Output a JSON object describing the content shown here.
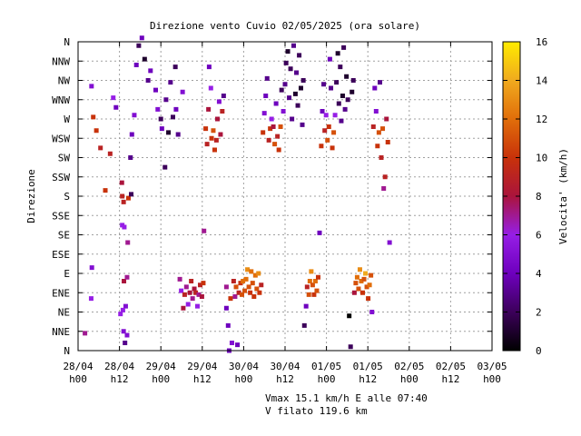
{
  "chart_data": {
    "type": "scatter",
    "title": "Direzione vento Cuvio 02/05/2025 (ora solare)",
    "ylabel": "Direzione",
    "colorbar_label": "Velocita' (km/h)",
    "colorbar_ticks": [
      "0",
      "2",
      "4",
      "6",
      "8",
      "10",
      "12",
      "14",
      "16"
    ],
    "colorbar_range": [
      0,
      16
    ],
    "x_ticks": [
      {
        "date": "28/04",
        "time": "h00"
      },
      {
        "date": "28/04",
        "time": "h12"
      },
      {
        "date": "29/04",
        "time": "h00"
      },
      {
        "date": "29/04",
        "time": "h12"
      },
      {
        "date": "30/04",
        "time": "h00"
      },
      {
        "date": "30/04",
        "time": "h12"
      },
      {
        "date": "01/05",
        "time": "h00"
      },
      {
        "date": "01/05",
        "time": "h12"
      },
      {
        "date": "02/05",
        "time": "h00"
      },
      {
        "date": "02/05",
        "time": "h12"
      },
      {
        "date": "03/05",
        "time": "h00"
      }
    ],
    "y_ticks": [
      "N",
      "NNE",
      "NE",
      "ENE",
      "E",
      "ESE",
      "SE",
      "SSE",
      "S",
      "SSW",
      "SW",
      "WSW",
      "W",
      "WNW",
      "NW",
      "NNW",
      "N"
    ],
    "grid": true,
    "footer": [
      "Vmax 15.1 km/h E alle 07:40",
      "V filato 119.6 km"
    ],
    "points": [
      [
        2.0,
        0.9,
        7
      ],
      [
        3.8,
        2.7,
        6
      ],
      [
        4.0,
        4.3,
        5
      ],
      [
        3.9,
        13.7,
        5
      ],
      [
        4.4,
        12.1,
        10
      ],
      [
        5.3,
        11.4,
        10
      ],
      [
        6.5,
        10.5,
        9
      ],
      [
        7.9,
        8.3,
        10
      ],
      [
        9.3,
        10.2,
        9
      ],
      [
        10.2,
        13.1,
        6
      ],
      [
        11.0,
        12.6,
        4
      ],
      [
        12.7,
        8.7,
        8
      ],
      [
        12.8,
        8.0,
        9
      ],
      [
        13.2,
        7.7,
        9
      ],
      [
        12.8,
        6.5,
        6
      ],
      [
        13.4,
        6.4,
        6
      ],
      [
        13.3,
        3.6,
        8
      ],
      [
        13.8,
        2.3,
        5
      ],
      [
        13.0,
        2.1,
        6
      ],
      [
        12.3,
        1.9,
        6
      ],
      [
        13.2,
        1.0,
        5
      ],
      [
        14.2,
        0.8,
        5
      ],
      [
        13.6,
        0.4,
        3
      ],
      [
        14.2,
        3.8,
        7
      ],
      [
        14.4,
        5.6,
        7
      ],
      [
        14.6,
        7.9,
        10
      ],
      [
        15.4,
        8.1,
        2
      ],
      [
        15.2,
        10.0,
        3
      ],
      [
        15.6,
        11.2,
        4
      ],
      [
        16.3,
        12.2,
        5
      ],
      [
        16.9,
        14.8,
        4
      ],
      [
        17.6,
        15.8,
        2
      ],
      [
        18.5,
        16.2,
        4
      ],
      [
        19.3,
        15.1,
        1
      ],
      [
        20.3,
        14.0,
        3
      ],
      [
        21.0,
        14.5,
        4
      ],
      [
        22.5,
        13.5,
        4
      ],
      [
        23.1,
        12.5,
        5
      ],
      [
        24.0,
        12.0,
        2
      ],
      [
        24.3,
        11.5,
        4
      ],
      [
        25.2,
        9.5,
        2
      ],
      [
        25.5,
        13.0,
        3
      ],
      [
        26.2,
        11.3,
        1
      ],
      [
        26.8,
        13.9,
        3
      ],
      [
        27.5,
        12.1,
        2
      ],
      [
        28.2,
        14.7,
        2
      ],
      [
        28.4,
        12.5,
        4
      ],
      [
        29.0,
        11.2,
        3
      ],
      [
        30.3,
        13.4,
        5
      ],
      [
        29.5,
        3.7,
        7
      ],
      [
        29.9,
        3.1,
        6
      ],
      [
        30.5,
        2.2,
        8
      ],
      [
        30.9,
        2.9,
        9
      ],
      [
        31.4,
        3.3,
        7
      ],
      [
        31.9,
        2.4,
        6
      ],
      [
        32.4,
        3.0,
        8
      ],
      [
        32.8,
        3.6,
        9
      ],
      [
        33.2,
        2.7,
        7
      ],
      [
        33.7,
        3.2,
        8
      ],
      [
        34.1,
        3.0,
        9
      ],
      [
        34.6,
        2.3,
        6
      ],
      [
        35.0,
        2.9,
        7
      ],
      [
        35.4,
        3.4,
        9
      ],
      [
        35.9,
        2.8,
        8
      ],
      [
        36.3,
        3.5,
        10
      ],
      [
        36.5,
        6.2,
        7
      ],
      [
        37.0,
        11.5,
        10
      ],
      [
        37.4,
        10.7,
        9
      ],
      [
        37.8,
        12.5,
        8
      ],
      [
        38.0,
        14.7,
        4
      ],
      [
        38.5,
        13.6,
        6
      ],
      [
        38.7,
        11.0,
        10
      ],
      [
        39.2,
        11.4,
        11
      ],
      [
        39.6,
        10.4,
        10
      ],
      [
        40.1,
        10.9,
        9
      ],
      [
        40.4,
        12.0,
        8
      ],
      [
        40.9,
        12.9,
        5
      ],
      [
        41.3,
        11.2,
        8
      ],
      [
        41.8,
        12.4,
        9
      ],
      [
        42.2,
        13.2,
        3
      ],
      [
        43.0,
        3.3,
        7
      ],
      [
        43.0,
        2.2,
        4
      ],
      [
        43.5,
        1.3,
        4
      ],
      [
        43.8,
        0.0,
        4
      ],
      [
        44.2,
        2.7,
        10
      ],
      [
        44.6,
        0.4,
        5
      ],
      [
        45.1,
        3.6,
        9
      ],
      [
        45.5,
        2.8,
        7
      ],
      [
        45.8,
        3.3,
        11
      ],
      [
        46.2,
        0.3,
        4
      ],
      [
        46.6,
        3.0,
        9
      ],
      [
        47.1,
        3.5,
        10
      ],
      [
        47.5,
        2.9,
        11
      ],
      [
        47.8,
        3.6,
        12
      ],
      [
        48.3,
        3.1,
        11
      ],
      [
        48.7,
        3.7,
        12
      ],
      [
        49.1,
        4.2,
        13
      ],
      [
        49.5,
        3.3,
        11
      ],
      [
        49.9,
        3.0,
        10
      ],
      [
        50.2,
        4.1,
        12
      ],
      [
        50.6,
        3.5,
        11
      ],
      [
        51.0,
        2.8,
        10
      ],
      [
        51.4,
        3.9,
        12
      ],
      [
        51.8,
        3.2,
        11
      ],
      [
        52.3,
        4.0,
        13
      ],
      [
        52.6,
        3.0,
        10
      ],
      [
        53.1,
        3.4,
        9
      ],
      [
        53.6,
        11.3,
        10
      ],
      [
        54.0,
        12.3,
        5
      ],
      [
        54.4,
        13.2,
        4
      ],
      [
        54.8,
        14.1,
        3
      ],
      [
        55.3,
        10.9,
        9
      ],
      [
        55.7,
        11.5,
        10
      ],
      [
        56.1,
        12.0,
        6
      ],
      [
        56.6,
        11.6,
        8
      ],
      [
        57.0,
        10.7,
        11
      ],
      [
        57.4,
        12.8,
        4
      ],
      [
        57.8,
        11.1,
        9
      ],
      [
        58.2,
        10.4,
        10
      ],
      [
        58.7,
        11.6,
        11
      ],
      [
        59.0,
        13.5,
        2
      ],
      [
        59.5,
        12.4,
        5
      ],
      [
        60.0,
        13.8,
        3
      ],
      [
        60.3,
        14.9,
        2
      ],
      [
        60.8,
        15.5,
        1
      ],
      [
        61.2,
        13.1,
        3
      ],
      [
        61.6,
        14.6,
        2
      ],
      [
        62.0,
        12.0,
        3
      ],
      [
        62.5,
        15.8,
        3
      ],
      [
        63.0,
        13.3,
        1
      ],
      [
        63.3,
        14.4,
        3
      ],
      [
        63.7,
        12.7,
        2
      ],
      [
        64.1,
        15.3,
        2
      ],
      [
        64.6,
        13.6,
        1
      ],
      [
        65.0,
        11.7,
        3
      ],
      [
        65.3,
        14.0,
        2
      ],
      [
        65.6,
        1.3,
        2
      ],
      [
        66.1,
        2.3,
        4
      ],
      [
        66.4,
        3.3,
        9
      ],
      [
        66.9,
        2.9,
        11
      ],
      [
        67.2,
        3.6,
        12
      ],
      [
        67.6,
        4.1,
        13
      ],
      [
        68.0,
        3.4,
        11
      ],
      [
        68.4,
        2.9,
        10
      ],
      [
        68.8,
        3.6,
        12
      ],
      [
        69.2,
        3.1,
        11
      ],
      [
        69.6,
        3.8,
        10
      ],
      [
        70.0,
        6.1,
        4
      ],
      [
        70.5,
        10.6,
        10
      ],
      [
        70.8,
        12.4,
        4
      ],
      [
        71.2,
        13.8,
        3
      ],
      [
        71.5,
        11.4,
        9
      ],
      [
        71.9,
        12.2,
        6
      ],
      [
        72.3,
        10.9,
        11
      ],
      [
        72.7,
        11.6,
        10
      ],
      [
        73.0,
        15.1,
        4
      ],
      [
        73.3,
        13.6,
        3
      ],
      [
        73.7,
        10.5,
        10
      ],
      [
        74.1,
        11.3,
        11
      ],
      [
        74.5,
        12.2,
        6
      ],
      [
        74.9,
        13.9,
        2
      ],
      [
        75.3,
        15.4,
        1
      ],
      [
        75.6,
        12.8,
        2
      ],
      [
        76.0,
        14.7,
        2
      ],
      [
        76.3,
        11.9,
        3
      ],
      [
        76.7,
        13.2,
        1
      ],
      [
        77.0,
        15.7,
        2
      ],
      [
        77.4,
        12.5,
        3
      ],
      [
        77.8,
        14.2,
        1
      ],
      [
        78.2,
        13.0,
        2
      ],
      [
        78.6,
        1.8,
        0
      ],
      [
        79.0,
        0.2,
        2
      ],
      [
        79.4,
        13.4,
        1
      ],
      [
        79.8,
        14.0,
        2
      ],
      [
        80.1,
        3.0,
        8
      ],
      [
        80.5,
        3.5,
        11
      ],
      [
        80.9,
        3.8,
        12
      ],
      [
        81.3,
        3.2,
        11
      ],
      [
        81.7,
        4.2,
        13
      ],
      [
        82.1,
        3.6,
        12
      ],
      [
        82.5,
        3.0,
        10
      ],
      [
        82.9,
        3.7,
        11
      ],
      [
        83.3,
        4.0,
        14
      ],
      [
        83.7,
        3.3,
        11
      ],
      [
        84.1,
        2.7,
        10
      ],
      [
        84.5,
        3.4,
        12
      ],
      [
        84.9,
        3.9,
        11
      ],
      [
        85.2,
        2.0,
        5
      ],
      [
        85.6,
        11.6,
        9
      ],
      [
        86.0,
        13.6,
        4
      ],
      [
        86.4,
        12.4,
        5
      ],
      [
        86.8,
        10.6,
        10
      ],
      [
        87.2,
        11.3,
        11
      ],
      [
        87.5,
        13.9,
        3
      ],
      [
        87.9,
        10.0,
        9
      ],
      [
        88.3,
        11.5,
        11
      ],
      [
        88.6,
        8.4,
        7
      ],
      [
        89.0,
        9.0,
        9
      ],
      [
        89.4,
        12.0,
        8
      ],
      [
        89.8,
        10.8,
        10
      ],
      [
        90.3,
        5.6,
        5
      ]
    ]
  }
}
